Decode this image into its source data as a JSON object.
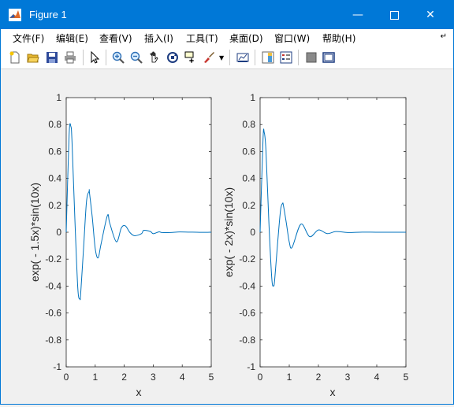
{
  "window": {
    "title": "Figure 1"
  },
  "menu": [
    "文件(F)",
    "编辑(E)",
    "查看(V)",
    "插入(I)",
    "工具(T)",
    "桌面(D)",
    "窗口(W)",
    "帮助(H)"
  ],
  "toolbar_icons": [
    "new-figure-icon",
    "open-file-icon",
    "save-icon",
    "print-icon",
    "select-arrow-icon",
    "zoom-in-icon",
    "zoom-out-icon",
    "pan-hand-icon",
    "rotate-3d-icon",
    "data-cursor-icon",
    "brush-icon",
    "brush-dropdown-icon",
    "link-plot-icon",
    "colorbar-icon",
    "legend-icon",
    "hide-plot-tools-icon",
    "show-plot-tools-icon"
  ],
  "colors": {
    "titlebar": "#0078d7",
    "line": "#0072bd"
  },
  "chart_data": [
    {
      "type": "line",
      "function": "exp(-1.5x)*sin(10x)",
      "xlabel": "x",
      "ylabel": "exp( - 1.5x)*sin(10x)",
      "xlim": [
        0,
        5
      ],
      "ylim": [
        -1,
        1
      ],
      "xticks": [
        "0",
        "1",
        "2",
        "3",
        "4",
        "5"
      ],
      "yticks": [
        "-1",
        "-0.8",
        "-0.6",
        "-0.4",
        "-0.2",
        "0",
        "0.2",
        "0.4",
        "0.6",
        "0.8",
        "1"
      ],
      "series": [
        {
          "x": [
            0,
            0.1,
            0.16,
            0.2,
            0.3,
            0.4,
            0.47,
            0.5,
            0.6,
            0.7,
            0.79,
            0.8,
            0.9,
            1.0,
            1.1,
            1.2,
            1.42,
            1.5,
            1.73,
            1.9,
            2.04,
            2.2,
            2.36,
            2.6,
            2.67,
            2.9,
            3.0,
            3.2,
            3.3,
            3.6,
            3.9,
            4.2,
            4.5,
            4.8,
            5.0
          ],
          "y": [
            0,
            0.724,
            0.786,
            0.673,
            0.089,
            -0.416,
            -0.496,
            -0.453,
            -0.112,
            0.23,
            0.304,
            0.297,
            0.108,
            -0.121,
            -0.191,
            -0.089,
            0.124,
            0.068,
            -0.071,
            0.032,
            0.047,
            -0.003,
            -0.026,
            -0.01,
            0.014,
            0.006,
            -0.011,
            0.003,
            -0.002,
            -0.002,
            0.002,
            0.001,
            0.0,
            -0.001,
            0.0
          ]
        }
      ]
    },
    {
      "type": "line",
      "function": "exp(-2x)*sin(10x)",
      "xlabel": "x",
      "ylabel": "exp( - 2x)*sin(10x)",
      "xlim": [
        0,
        5
      ],
      "ylim": [
        -1,
        1
      ],
      "xticks": [
        "0",
        "1",
        "2",
        "3",
        "4",
        "5"
      ],
      "yticks": [
        "-1",
        "-0.8",
        "-0.6",
        "-0.4",
        "-0.2",
        "0",
        "0.2",
        "0.4",
        "0.6",
        "0.8",
        "1"
      ],
      "series": [
        {
          "x": [
            0,
            0.1,
            0.14,
            0.2,
            0.3,
            0.4,
            0.46,
            0.5,
            0.6,
            0.7,
            0.77,
            0.8,
            0.9,
            1.0,
            1.1,
            1.4,
            1.7,
            2.0,
            2.3,
            2.6,
            3.0,
            3.5,
            4.0,
            4.5,
            5.0
          ],
          "y": [
            0,
            0.689,
            0.742,
            0.609,
            0.077,
            -0.341,
            -0.398,
            -0.353,
            -0.082,
            0.162,
            0.214,
            0.198,
            0.068,
            -0.073,
            -0.111,
            0.06,
            -0.033,
            0.017,
            -0.01,
            0.005,
            -0.002,
            0.001,
            0.0,
            0.0,
            0.0
          ]
        }
      ]
    }
  ]
}
